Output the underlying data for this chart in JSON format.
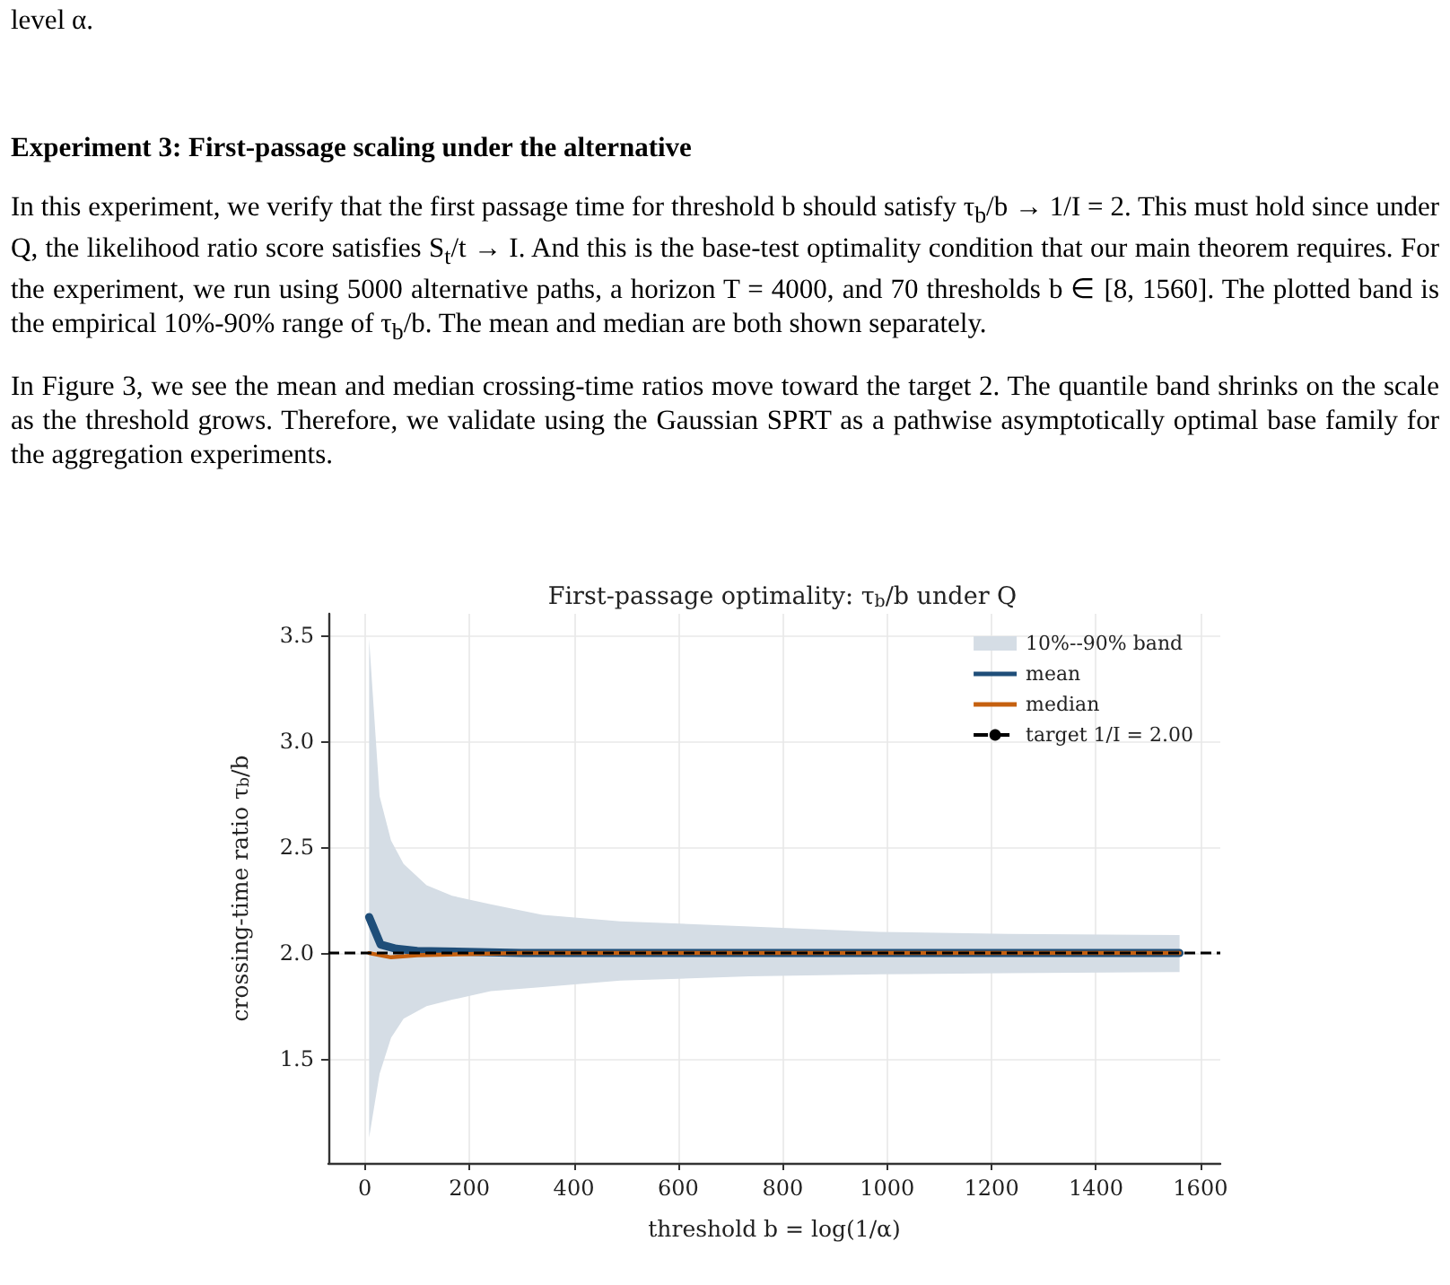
{
  "chart_data": {
    "type": "line",
    "title": "First-passage optimality: τ$_{b}$/b under Q",
    "xlabel": "threshold b = log(1/α)",
    "ylabel": "crossing-time ratio τ$_{b}$/b",
    "annotations": [
      "level α.",
      "Experiment 3: First-passage scaling under the alternative",
      "In this experiment, we verify that the first passage time for threshold b should satisfy τ$_{b}$/b → 1/I = 2. This must hold since under Q, the likelihood ratio score satisfies S$_{t}$/t → I. And this is the base-test optimality condition that our main theorem requires. For the experiment, we run using 5000 alternative paths, a horizon T = 4000, and 70 thresholds b ∈ [8, 1560]. The plotted band is the empirical 10%-90% range of τ$_{b}$/b. The mean and median are both shown separately.",
      "In Figure 3, we see the mean and median crossing-time ratios move toward the target 2. The quantile band shrinks on the scale as the threshold grows. Therefore, we validate using the Gaussian SPRT as a pathwise asymptotically optimal base family for the aggregation experiments."
    ],
    "series": [
      {
        "name": "10%--90% band",
        "type": "area",
        "color": "#d5dde5",
        "x": [
          8,
          28,
          50,
          74,
          118,
          167,
          241,
          340,
          489,
          737,
          984,
          1232,
          1560
        ],
        "values": [
          null,
          null,
          null,
          null,
          null,
          null,
          null,
          null,
          null,
          null,
          null,
          null,
          null
        ],
        "lower": [
          1.13,
          1.43,
          1.6,
          1.69,
          1.75,
          1.78,
          1.82,
          1.84,
          1.87,
          1.89,
          1.9,
          1.905,
          1.91
        ],
        "upper": [
          3.48,
          2.74,
          2.53,
          2.42,
          2.32,
          2.27,
          2.23,
          2.18,
          2.15,
          2.125,
          2.1,
          2.09,
          2.085
        ]
      },
      {
        "name": "mean",
        "color": "#1f4e79",
        "x": [
          8,
          30,
          60,
          100,
          300,
          1560
        ],
        "values": [
          2.17,
          2.04,
          2.02,
          2.01,
          2.0,
          2.0
        ]
      },
      {
        "name": "median",
        "color": "#c5600f",
        "x": [
          8,
          50,
          100,
          300,
          1560
        ],
        "values": [
          2.0,
          1.98,
          1.99,
          2.0,
          2.0
        ]
      }
    ],
    "ref_lines": [
      {
        "axis": "y",
        "value": 2.0,
        "label": "target 1/I = 2.00",
        "color": "#000000",
        "line_style": "dashed"
      }
    ],
    "xlim": [
      -70,
      1638
    ],
    "ylim": [
      1.01,
      3.6
    ],
    "xticks": [
      0,
      200,
      400,
      600,
      800,
      1000,
      1200,
      1400,
      1600
    ],
    "yticks": [
      1.5,
      {
        "value": 2,
        "label": "2.0"
      },
      2.5,
      {
        "value": 3,
        "label": "3.0"
      },
      3.5
    ],
    "grid": true,
    "legend": "top right",
    "marker": "none",
    "line_style": "solid"
  }
}
